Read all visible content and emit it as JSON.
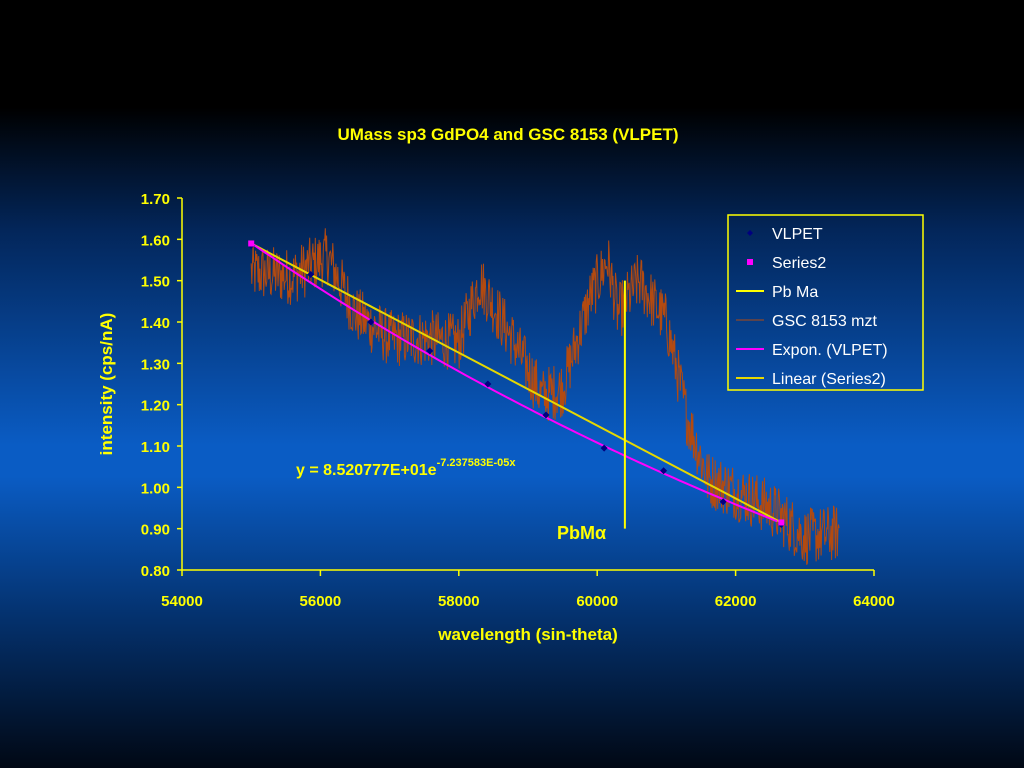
{
  "chart_data": {
    "type": "scatter",
    "title": "UMass sp3 GdPO4 and GSC 8153 (VLPET)",
    "xlabel": "wavelength (sin-theta)",
    "ylabel": "intensity (cps/nA)",
    "xlim": [
      54000,
      64000
    ],
    "ylim": [
      0.8,
      1.7
    ],
    "x_ticks": [
      "54000",
      "56000",
      "58000",
      "60000",
      "62000",
      "64000"
    ],
    "y_ticks": [
      "0.80",
      "0.90",
      "1.00",
      "1.10",
      "1.20",
      "1.30",
      "1.40",
      "1.50",
      "1.60",
      "1.70"
    ],
    "grid": false,
    "legend_position": "top-right",
    "series": [
      {
        "name": "VLPET",
        "kind": "markers",
        "marker": "diamond",
        "color": "#000080",
        "x": [
          55000,
          55860,
          56730,
          57580,
          58420,
          59260,
          60100,
          60960,
          61820,
          62660
        ],
        "y": [
          1.585,
          1.515,
          1.4,
          1.33,
          1.25,
          1.175,
          1.095,
          1.04,
          0.965,
          0.91
        ]
      },
      {
        "name": "Series2",
        "kind": "markers",
        "marker": "square",
        "color": "#ff00ff",
        "x": [
          55000,
          62660
        ],
        "y": [
          1.59,
          0.915
        ]
      },
      {
        "name": "Pb Ma",
        "kind": "line",
        "color": "#ffff00",
        "x": [
          60400,
          60400
        ],
        "y": [
          0.9,
          1.5
        ]
      },
      {
        "name": "GSC 8153 mzt",
        "kind": "line",
        "color": "#b34a10",
        "anchors_x": [
          55000,
          55600,
          56100,
          56500,
          57000,
          57600,
          58000,
          58300,
          58800,
          59200,
          59500,
          59900,
          60150,
          60300,
          60600,
          61000,
          61300,
          61600,
          62000,
          62500,
          63000,
          63500
        ],
        "anchors_y": [
          1.52,
          1.51,
          1.56,
          1.42,
          1.36,
          1.36,
          1.35,
          1.5,
          1.35,
          1.22,
          1.24,
          1.46,
          1.55,
          1.42,
          1.5,
          1.4,
          1.17,
          1.02,
          0.99,
          0.95,
          0.88,
          0.89
        ]
      },
      {
        "name": "Expon. (VLPET)",
        "kind": "trendline",
        "color": "#ff00ff",
        "equation": {
          "a": 85.20777,
          "b": -7.237583e-05
        }
      },
      {
        "name": "Linear (Series2)",
        "kind": "trendline",
        "color": "#e6d800",
        "x": [
          55000,
          62660
        ],
        "y": [
          1.59,
          0.915
        ]
      }
    ],
    "annotations": {
      "equation_main": "y = 8.520777E+01e",
      "equation_sup": "-7.237583E-05x",
      "pb_label": "PbMα"
    }
  }
}
